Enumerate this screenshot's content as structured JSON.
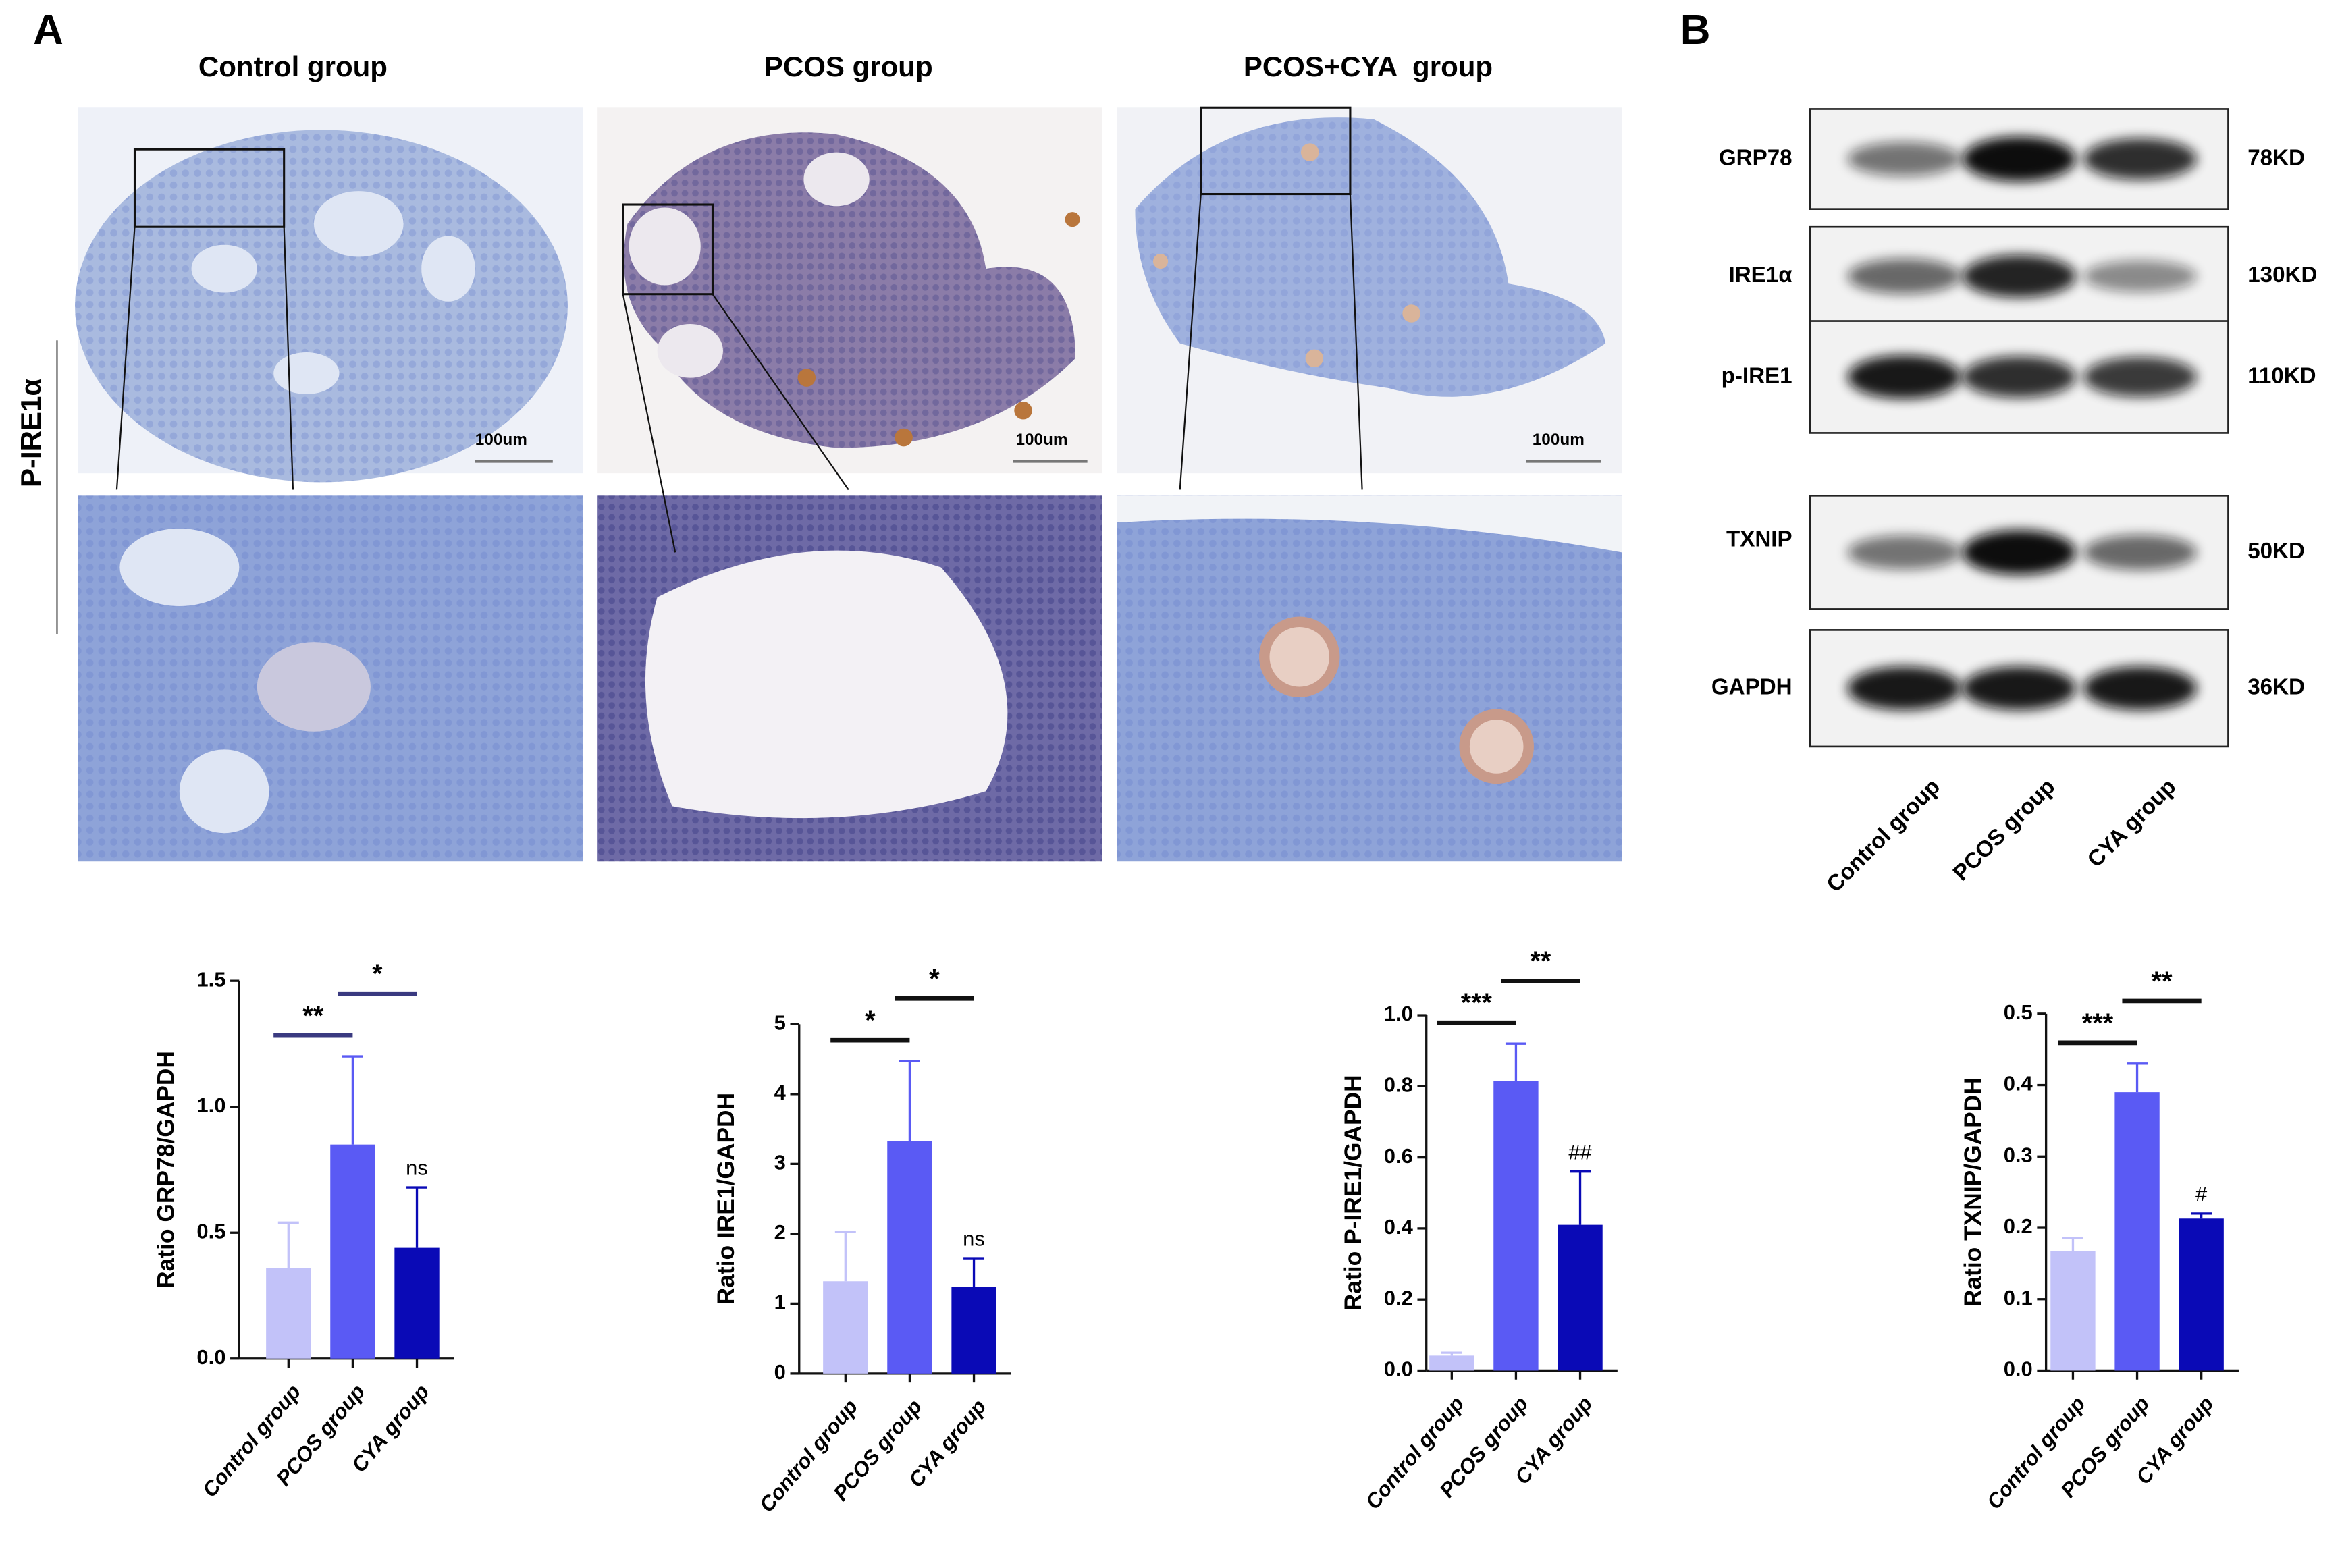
{
  "panel_labels": [
    "A",
    "B"
  ],
  "histology": {
    "row_label": "P-IRE1α",
    "columns": [
      "Control group",
      "PCOS group",
      "PCOS+CYA  group"
    ],
    "scale_bars": [
      "100um",
      "100um",
      "100um"
    ]
  },
  "western_blot": {
    "proteins": [
      "GRP78",
      "IRE1α",
      "p-IRE1",
      "TXNIP",
      "GAPDH"
    ],
    "sizes": [
      "78KD",
      "130KD",
      "110KD",
      "50KD",
      "36KD"
    ],
    "lanes": [
      "Control group",
      "PCOS group",
      "CYA group"
    ]
  },
  "chart_data": [
    {
      "type": "bar",
      "y_label": "Ratio GRP78/GAPDH",
      "categories": [
        "Control group",
        "PCOS group",
        "CYA group"
      ],
      "colors": [
        "#c2c2f9",
        "#5a5af4",
        "#0a0ab6"
      ],
      "values": [
        0.36,
        0.85,
        0.44
      ],
      "errors": [
        0.18,
        0.35,
        0.24
      ],
      "ylim": [
        0,
        1.5
      ],
      "yticks": [
        {
          "value": 0,
          "label": "0.0"
        },
        0.5,
        {
          "value": 1,
          "label": "1.0"
        },
        1.5
      ],
      "brackets": [
        "**",
        "*"
      ],
      "bar_labels": [
        null,
        null,
        "ns"
      ]
    },
    {
      "type": "bar",
      "y_label": "Ratio IRE1/GAPDH",
      "categories": [
        "Control group",
        "PCOS group",
        "CYA group"
      ],
      "colors": [
        "#c2c2f9",
        "#5a5af4",
        "#0a0ab6"
      ],
      "values": [
        1.32,
        3.33,
        1.24
      ],
      "errors": [
        0.71,
        1.14,
        0.41
      ],
      "ylim": [
        0,
        5
      ],
      "yticks": [
        0,
        1,
        2,
        3,
        4,
        5
      ],
      "brackets": [
        "*",
        "*"
      ],
      "bar_labels": [
        null,
        null,
        "ns"
      ]
    },
    {
      "type": "bar",
      "y_label": "Ratio P-IRE1/GAPDH",
      "categories": [
        "Control group",
        "PCOS group",
        "CYA group"
      ],
      "colors": [
        "#c2c2f9",
        "#5a5af4",
        "#0a0ab6"
      ],
      "values": [
        0.042,
        0.815,
        0.41
      ],
      "errors": [
        0.008,
        0.105,
        0.15
      ],
      "ylim": [
        0,
        1
      ],
      "yticks": [
        {
          "value": 0,
          "label": "0.0"
        },
        0.2,
        0.4,
        0.6,
        0.8,
        {
          "value": 1,
          "label": "1.0"
        }
      ],
      "brackets": [
        "***",
        "**"
      ],
      "bar_labels": [
        null,
        null,
        "##"
      ]
    },
    {
      "type": "bar",
      "y_label": "Ratio TXNIP/GAPDH",
      "categories": [
        "Control group",
        "PCOS group",
        "CYA group"
      ],
      "colors": [
        "#c2c2f9",
        "#5a5af4",
        "#0a0ab6"
      ],
      "values": [
        0.167,
        0.39,
        0.213
      ],
      "errors": [
        0.019,
        0.04,
        0.007
      ],
      "ylim": [
        0,
        0.5
      ],
      "yticks": [
        {
          "value": 0,
          "label": "0.0"
        },
        0.1,
        0.2,
        0.3,
        0.4,
        0.5
      ],
      "brackets": [
        "***",
        "**"
      ],
      "bar_labels": [
        null,
        null,
        "#"
      ]
    }
  ]
}
